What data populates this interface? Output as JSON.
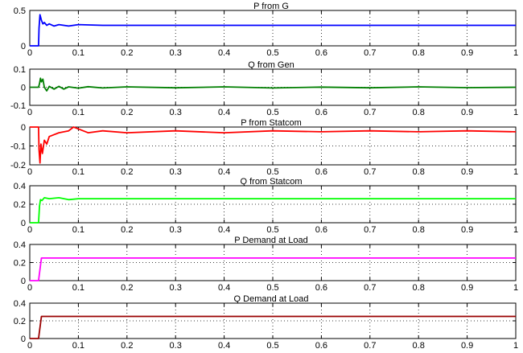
{
  "chart_data": [
    {
      "type": "line",
      "title": "P from G",
      "xlim": [
        0,
        1
      ],
      "ylim": [
        0,
        0.5
      ],
      "yticks": [
        "0",
        "0.5"
      ],
      "ytick_values": [
        0,
        0.5
      ],
      "grid": true,
      "series": [
        {
          "color": "#0000ff",
          "x": [
            0,
            0.018,
            0.019,
            0.021,
            0.024,
            0.027,
            0.03,
            0.035,
            0.04,
            0.05,
            0.06,
            0.08,
            0.1,
            0.15,
            0.2,
            0.3,
            0.4,
            0.5,
            0.6,
            0.7,
            0.8,
            0.9,
            1.0
          ],
          "y": [
            0,
            0,
            0.25,
            0.44,
            0.36,
            0.31,
            0.33,
            0.29,
            0.31,
            0.28,
            0.3,
            0.28,
            0.3,
            0.29,
            0.29,
            0.29,
            0.29,
            0.29,
            0.29,
            0.29,
            0.29,
            0.29,
            0.29
          ]
        }
      ]
    },
    {
      "type": "line",
      "title": "Q from Gen",
      "xlim": [
        0,
        1
      ],
      "ylim": [
        -0.1,
        0.1
      ],
      "yticks": [
        "0.1",
        "0",
        "-0.1"
      ],
      "ytick_values": [
        0.1,
        0,
        -0.1
      ],
      "grid": true,
      "series": [
        {
          "color": "#007f00",
          "x": [
            0,
            0.018,
            0.02,
            0.022,
            0.024,
            0.027,
            0.03,
            0.035,
            0.04,
            0.05,
            0.06,
            0.07,
            0.08,
            0.1,
            0.12,
            0.15,
            0.2,
            0.3,
            0.4,
            0.5,
            0.6,
            0.7,
            0.8,
            0.9,
            1.0
          ],
          "y": [
            0,
            0,
            0.02,
            0.05,
            0.03,
            0.045,
            0.0,
            -0.02,
            0.005,
            -0.01,
            0.005,
            -0.01,
            0.002,
            -0.005,
            0.003,
            -0.004,
            0.002,
            -0.003,
            0.002,
            -0.004,
            0.001,
            -0.003,
            0.002,
            -0.002,
            0.0
          ]
        }
      ]
    },
    {
      "type": "line",
      "title": "P from Statcom",
      "xlim": [
        0,
        1
      ],
      "ylim": [
        -0.2,
        0
      ],
      "yticks": [
        "0",
        "-0.1",
        "-0.2"
      ],
      "ytick_values": [
        0,
        -0.1,
        -0.2
      ],
      "grid": true,
      "series": [
        {
          "color": "#ff0000",
          "x": [
            0,
            0.018,
            0.019,
            0.021,
            0.023,
            0.026,
            0.03,
            0.035,
            0.04,
            0.05,
            0.06,
            0.08,
            0.09,
            0.1,
            0.12,
            0.15,
            0.2,
            0.3,
            0.4,
            0.5,
            0.6,
            0.7,
            0.8,
            0.9,
            1.0
          ],
          "y": [
            0,
            0,
            -0.12,
            -0.19,
            -0.09,
            -0.14,
            -0.07,
            -0.09,
            -0.05,
            -0.04,
            -0.03,
            -0.02,
            0.0,
            -0.01,
            -0.03,
            -0.02,
            -0.03,
            -0.02,
            -0.03,
            -0.02,
            -0.025,
            -0.02,
            -0.025,
            -0.02,
            -0.025
          ]
        }
      ]
    },
    {
      "type": "line",
      "title": "Q from Statcom",
      "xlim": [
        0,
        1
      ],
      "ylim": [
        0,
        0.4
      ],
      "yticks": [
        "0.4",
        "0.2",
        "0"
      ],
      "ytick_values": [
        0.4,
        0.2,
        0
      ],
      "grid": true,
      "series": [
        {
          "color": "#00ff00",
          "x": [
            0,
            0.018,
            0.02,
            0.022,
            0.025,
            0.03,
            0.04,
            0.06,
            0.08,
            0.1,
            0.2,
            0.3,
            0.4,
            0.5,
            0.6,
            0.7,
            0.8,
            0.9,
            1.0
          ],
          "y": [
            0,
            0,
            0.18,
            0.25,
            0.24,
            0.27,
            0.26,
            0.27,
            0.25,
            0.26,
            0.26,
            0.26,
            0.26,
            0.26,
            0.26,
            0.26,
            0.26,
            0.26,
            0.26
          ]
        }
      ]
    },
    {
      "type": "line",
      "title": "P Demand at Load",
      "xlim": [
        0,
        1
      ],
      "ylim": [
        0,
        0.4
      ],
      "yticks": [
        "0.4",
        "0.2",
        "0"
      ],
      "ytick_values": [
        0.4,
        0.2,
        0
      ],
      "grid": true,
      "series": [
        {
          "color": "#ff00ff",
          "x": [
            0,
            0.018,
            0.024,
            1.0
          ],
          "y": [
            0,
            0,
            0.25,
            0.25
          ]
        }
      ]
    },
    {
      "type": "line",
      "title": "Q Demand at Load",
      "xlim": [
        0,
        1
      ],
      "ylim": [
        0,
        0.4
      ],
      "yticks": [
        "0.4",
        "0.2",
        "0"
      ],
      "ytick_values": [
        0.4,
        0.2,
        0
      ],
      "grid": true,
      "series": [
        {
          "color": "#990000",
          "x": [
            0,
            0.018,
            0.024,
            1.0
          ],
          "y": [
            0,
            0,
            0.25,
            0.25
          ]
        }
      ]
    }
  ],
  "xticks": [
    "0",
    "0.1",
    "0.2",
    "0.3",
    "0.4",
    "0.5",
    "0.6",
    "0.7",
    "0.8",
    "0.9",
    "1"
  ],
  "xtick_values": [
    0,
    0.1,
    0.2,
    0.3,
    0.4,
    0.5,
    0.6,
    0.7,
    0.8,
    0.9,
    1
  ]
}
